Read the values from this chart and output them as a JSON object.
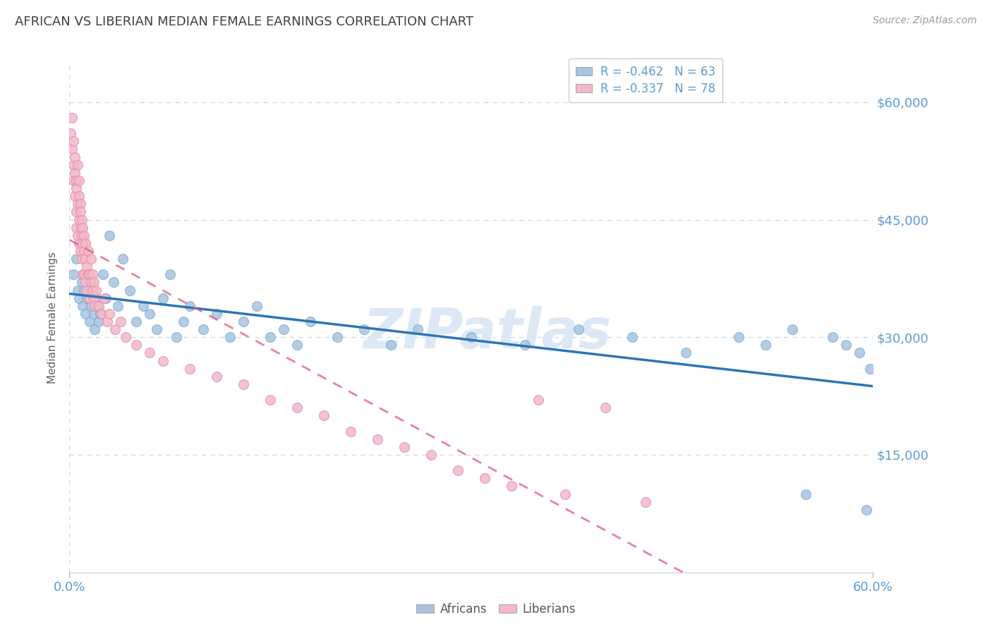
{
  "title": "AFRICAN VS LIBERIAN MEDIAN FEMALE EARNINGS CORRELATION CHART",
  "source_text": "Source: ZipAtlas.com",
  "ylabel": "Median Female Earnings",
  "xlim": [
    0.0,
    0.6
  ],
  "ylim": [
    0,
    65000
  ],
  "yticks": [
    0,
    15000,
    30000,
    45000,
    60000
  ],
  "ytick_labels": [
    "",
    "$15,000",
    "$30,000",
    "$45,000",
    "$60,000"
  ],
  "bg_color": "#ffffff",
  "grid_color": "#c8d8e8",
  "title_color": "#404040",
  "axis_color": "#5b9bd5",
  "watermark_text": "ZIPatlas",
  "watermark_color": "#dce8f5",
  "africans_scatter_color": "#a8c4e0",
  "africans_scatter_edge": "#7aafd4",
  "africans_line_color": "#2e75b6",
  "liberians_scatter_color": "#f4b8c8",
  "liberians_scatter_edge": "#e090a8",
  "liberians_line_color": "#e05880",
  "africans_R": -0.462,
  "africans_N": 63,
  "liberians_R": -0.337,
  "liberians_N": 78,
  "africans_x": [
    0.003,
    0.005,
    0.006,
    0.007,
    0.008,
    0.009,
    0.01,
    0.011,
    0.012,
    0.013,
    0.014,
    0.015,
    0.016,
    0.017,
    0.018,
    0.019,
    0.02,
    0.021,
    0.022,
    0.023,
    0.025,
    0.027,
    0.03,
    0.033,
    0.036,
    0.04,
    0.045,
    0.05,
    0.055,
    0.06,
    0.065,
    0.07,
    0.075,
    0.08,
    0.085,
    0.09,
    0.1,
    0.11,
    0.12,
    0.13,
    0.14,
    0.15,
    0.16,
    0.17,
    0.18,
    0.2,
    0.22,
    0.24,
    0.26,
    0.3,
    0.34,
    0.38,
    0.42,
    0.46,
    0.5,
    0.52,
    0.54,
    0.55,
    0.57,
    0.58,
    0.59,
    0.595,
    0.598
  ],
  "africans_y": [
    38000,
    40000,
    36000,
    35000,
    42000,
    37000,
    34000,
    36000,
    33000,
    35000,
    38000,
    32000,
    34000,
    36000,
    33000,
    31000,
    35000,
    34000,
    32000,
    33000,
    38000,
    35000,
    43000,
    37000,
    34000,
    40000,
    36000,
    32000,
    34000,
    33000,
    31000,
    35000,
    38000,
    30000,
    32000,
    34000,
    31000,
    33000,
    30000,
    32000,
    34000,
    30000,
    31000,
    29000,
    32000,
    30000,
    31000,
    29000,
    31000,
    30000,
    29000,
    31000,
    30000,
    28000,
    30000,
    29000,
    31000,
    10000,
    30000,
    29000,
    28000,
    8000,
    26000
  ],
  "liberians_x": [
    0.001,
    0.002,
    0.002,
    0.003,
    0.003,
    0.003,
    0.004,
    0.004,
    0.004,
    0.005,
    0.005,
    0.005,
    0.005,
    0.006,
    0.006,
    0.006,
    0.007,
    0.007,
    0.007,
    0.007,
    0.008,
    0.008,
    0.008,
    0.008,
    0.009,
    0.009,
    0.009,
    0.01,
    0.01,
    0.01,
    0.011,
    0.011,
    0.011,
    0.012,
    0.012,
    0.012,
    0.013,
    0.013,
    0.014,
    0.014,
    0.015,
    0.015,
    0.016,
    0.016,
    0.017,
    0.017,
    0.018,
    0.018,
    0.019,
    0.02,
    0.022,
    0.024,
    0.026,
    0.028,
    0.03,
    0.034,
    0.038,
    0.042,
    0.05,
    0.06,
    0.07,
    0.09,
    0.11,
    0.13,
    0.15,
    0.17,
    0.19,
    0.21,
    0.23,
    0.25,
    0.27,
    0.29,
    0.31,
    0.33,
    0.35,
    0.37,
    0.4,
    0.43
  ],
  "liberians_y": [
    56000,
    54000,
    58000,
    52000,
    55000,
    50000,
    53000,
    48000,
    51000,
    50000,
    46000,
    49000,
    44000,
    52000,
    47000,
    43000,
    50000,
    45000,
    42000,
    48000,
    44000,
    47000,
    41000,
    46000,
    43000,
    40000,
    45000,
    42000,
    38000,
    44000,
    41000,
    38000,
    43000,
    40000,
    37000,
    42000,
    39000,
    36000,
    38000,
    41000,
    38000,
    35000,
    37000,
    40000,
    36000,
    38000,
    35000,
    37000,
    34000,
    36000,
    34000,
    33000,
    35000,
    32000,
    33000,
    31000,
    32000,
    30000,
    29000,
    28000,
    27000,
    26000,
    25000,
    24000,
    22000,
    21000,
    20000,
    18000,
    17000,
    16000,
    15000,
    13000,
    12000,
    11000,
    22000,
    10000,
    21000,
    9000
  ]
}
